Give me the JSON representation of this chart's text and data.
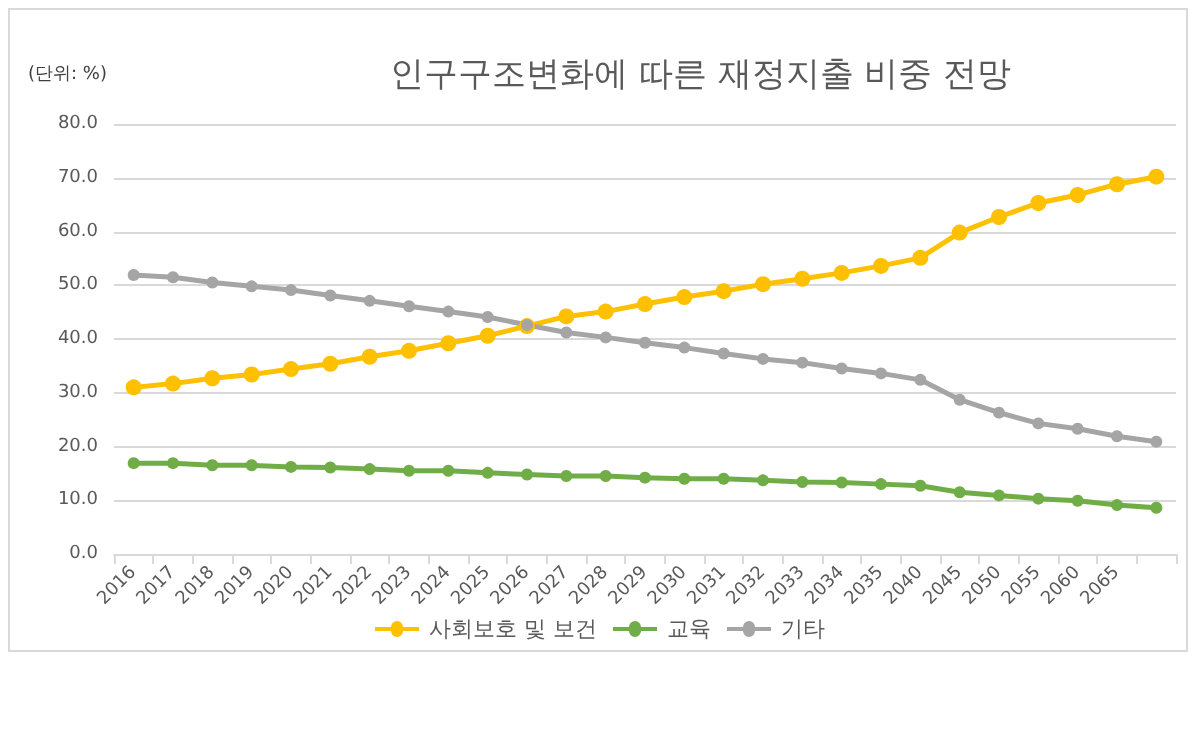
{
  "chart_data": {
    "type": "line",
    "title": "인구구조변화에 따른 재정지출 비중 전망",
    "annotations": [
      "(단위: %)"
    ],
    "categories": [
      "2016",
      "2017",
      "2018",
      "2019",
      "2020",
      "2021",
      "2022",
      "2023",
      "2024",
      "2025",
      "2026",
      "2027",
      "2028",
      "2029",
      "2030",
      "2031",
      "2032",
      "2033",
      "2034",
      "2035",
      "2040",
      "2045",
      "2050",
      "2055",
      "2060",
      "2065",
      null
    ],
    "series": [
      {
        "name": "사회보호 및 보건",
        "color": "#ffc000",
        "values": [
          31,
          31.7,
          32.7,
          33.4,
          34.4,
          35.4,
          36.7,
          37.8,
          39.2,
          40.6,
          42.4,
          44.2,
          45.1,
          46.5,
          47.8,
          48.9,
          50.2,
          51.2,
          52.3,
          53.6,
          55.1,
          59.8,
          62.7,
          65.3,
          66.8,
          68.8,
          70.2
        ]
      },
      {
        "name": "교육",
        "color": "#70ad47",
        "values": [
          16.9,
          16.9,
          16.5,
          16.5,
          16.2,
          16.1,
          15.8,
          15.5,
          15.5,
          15.1,
          14.8,
          14.5,
          14.5,
          14.2,
          14.0,
          14.0,
          13.7,
          13.4,
          13.3,
          13.0,
          12.7,
          11.5,
          10.9,
          10.3,
          9.9,
          9.1,
          8.6
        ]
      },
      {
        "name": "기타",
        "color": "#a5a5a5",
        "values": [
          51.9,
          51.5,
          50.5,
          49.8,
          49.1,
          48.1,
          47.1,
          46.1,
          45.1,
          44.1,
          42.6,
          41.2,
          40.3,
          39.3,
          38.4,
          37.3,
          36.3,
          35.6,
          34.5,
          33.6,
          32.4,
          28.7,
          26.3,
          24.3,
          23.3,
          21.9,
          20.9
        ]
      }
    ],
    "ylim": [
      0,
      80
    ],
    "yticks": [
      {
        "value": 0,
        "label": "0.0"
      },
      {
        "value": 10,
        "label": "10.0"
      },
      {
        "value": 20,
        "label": "20.0"
      },
      {
        "value": 30,
        "label": "30.0"
      },
      {
        "value": 40,
        "label": "40.0"
      },
      {
        "value": 50,
        "label": "50.0"
      },
      {
        "value": 60,
        "label": "60.0"
      },
      {
        "value": 70,
        "label": "70.0"
      },
      {
        "value": 80,
        "label": "80.0"
      }
    ],
    "grid": "y",
    "legend": "bottom",
    "marker": "circle",
    "line_style": "solid"
  }
}
